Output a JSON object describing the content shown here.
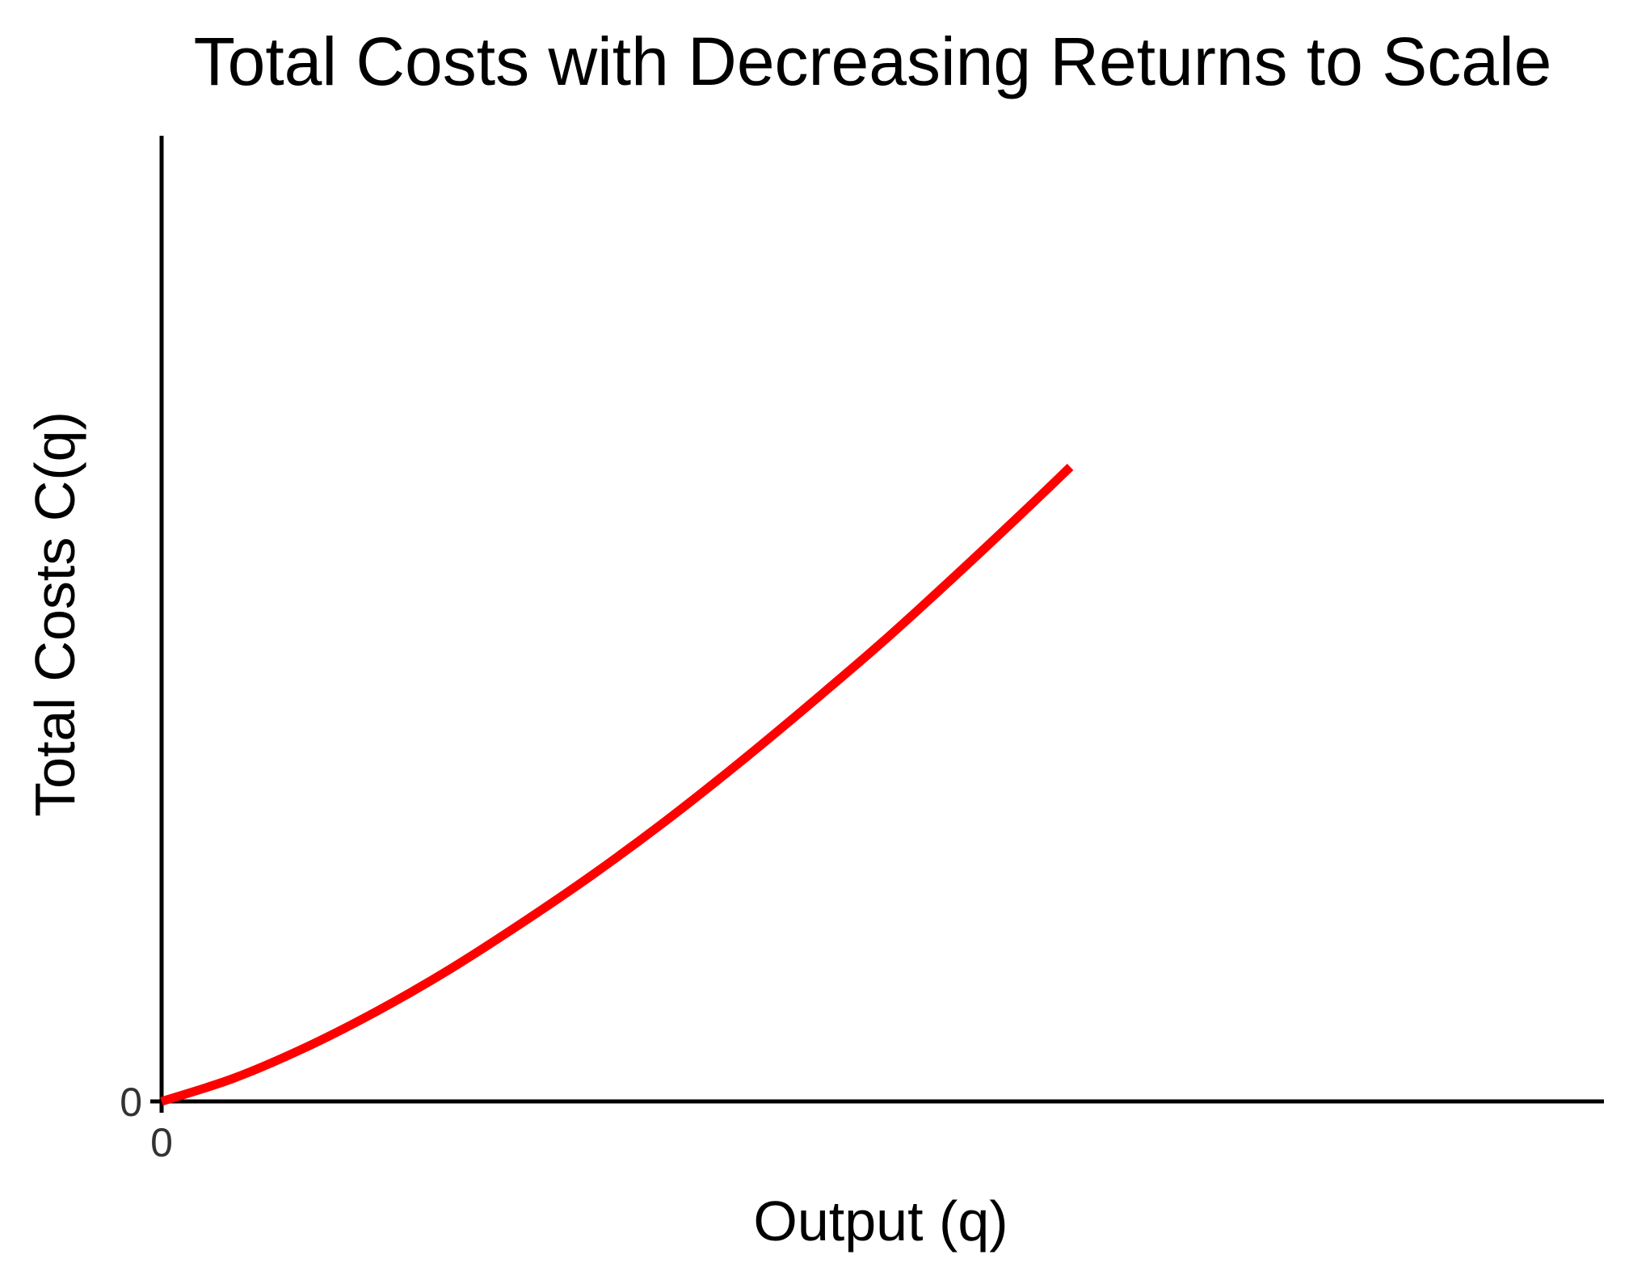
{
  "colors": {
    "background": "#ffffff",
    "axis": "#000000",
    "curve": "#ff0000",
    "tick_text": "#333333"
  },
  "chart_data": {
    "type": "line",
    "title": "Total Costs with Decreasing Returns to Scale",
    "xlabel": "Output (q)",
    "ylabel": "Total Costs C(q)",
    "xlim": [
      0,
      10
    ],
    "ylim": [
      0,
      10
    ],
    "x_ticks": [
      0
    ],
    "x_tick_labels": [
      "0"
    ],
    "y_ticks": [
      0
    ],
    "y_tick_labels": [
      "0"
    ],
    "grid": false,
    "legend": "none",
    "series": [
      {
        "color": "#ff0000",
        "x": [
          0,
          0.5,
          1,
          1.5,
          2,
          2.5,
          3,
          3.5,
          4,
          4.5,
          5,
          5.5,
          6,
          6.3
        ],
        "y": [
          0,
          0.24,
          0.56,
          0.94,
          1.37,
          1.85,
          2.36,
          2.91,
          3.5,
          4.12,
          4.76,
          5.44,
          6.14,
          6.57
        ]
      }
    ]
  }
}
